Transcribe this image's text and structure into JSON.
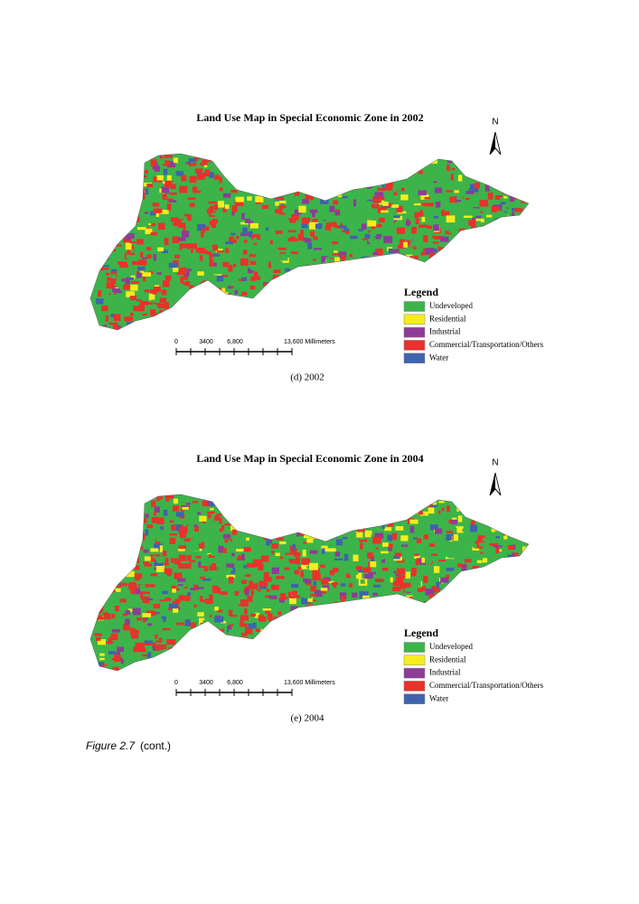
{
  "figure_caption": {
    "label": "Figure 2.7",
    "text": "(cont.)"
  },
  "maps": [
    {
      "title": "Land Use Map in Special Economic Zone in 2002",
      "north": "N",
      "legend": {
        "title": "Legend",
        "items": [
          {
            "label": "Undeveloped",
            "color": "#3cb44a"
          },
          {
            "label": "Residential",
            "color": "#f7ec1e"
          },
          {
            "label": "Industrial",
            "color": "#8e3c97"
          },
          {
            "label": "Commercial/Transportation/Others",
            "color": "#e8322b"
          },
          {
            "label": "Water",
            "color": "#3f63ad"
          }
        ]
      },
      "scale": {
        "labels": [
          "0",
          "3400",
          "6,800",
          "13,600 Millimeters"
        ]
      },
      "caption": "(d) 2002"
    },
    {
      "title": "Land Use Map in Special Economic Zone in 2004",
      "north": "N",
      "legend": {
        "title": "Legend",
        "items": [
          {
            "label": "Undeveloped",
            "color": "#3cb44a"
          },
          {
            "label": "Residential",
            "color": "#f7ec1e"
          },
          {
            "label": "Industrial",
            "color": "#8e3c97"
          },
          {
            "label": "Commercial/Transportation/Others",
            "color": "#e8322b"
          },
          {
            "label": "Water",
            "color": "#3f63ad"
          }
        ]
      },
      "scale": {
        "labels": [
          "0",
          "3400",
          "6,800",
          "13,600 Millimeters"
        ]
      },
      "caption": "(e) 2004"
    }
  ]
}
